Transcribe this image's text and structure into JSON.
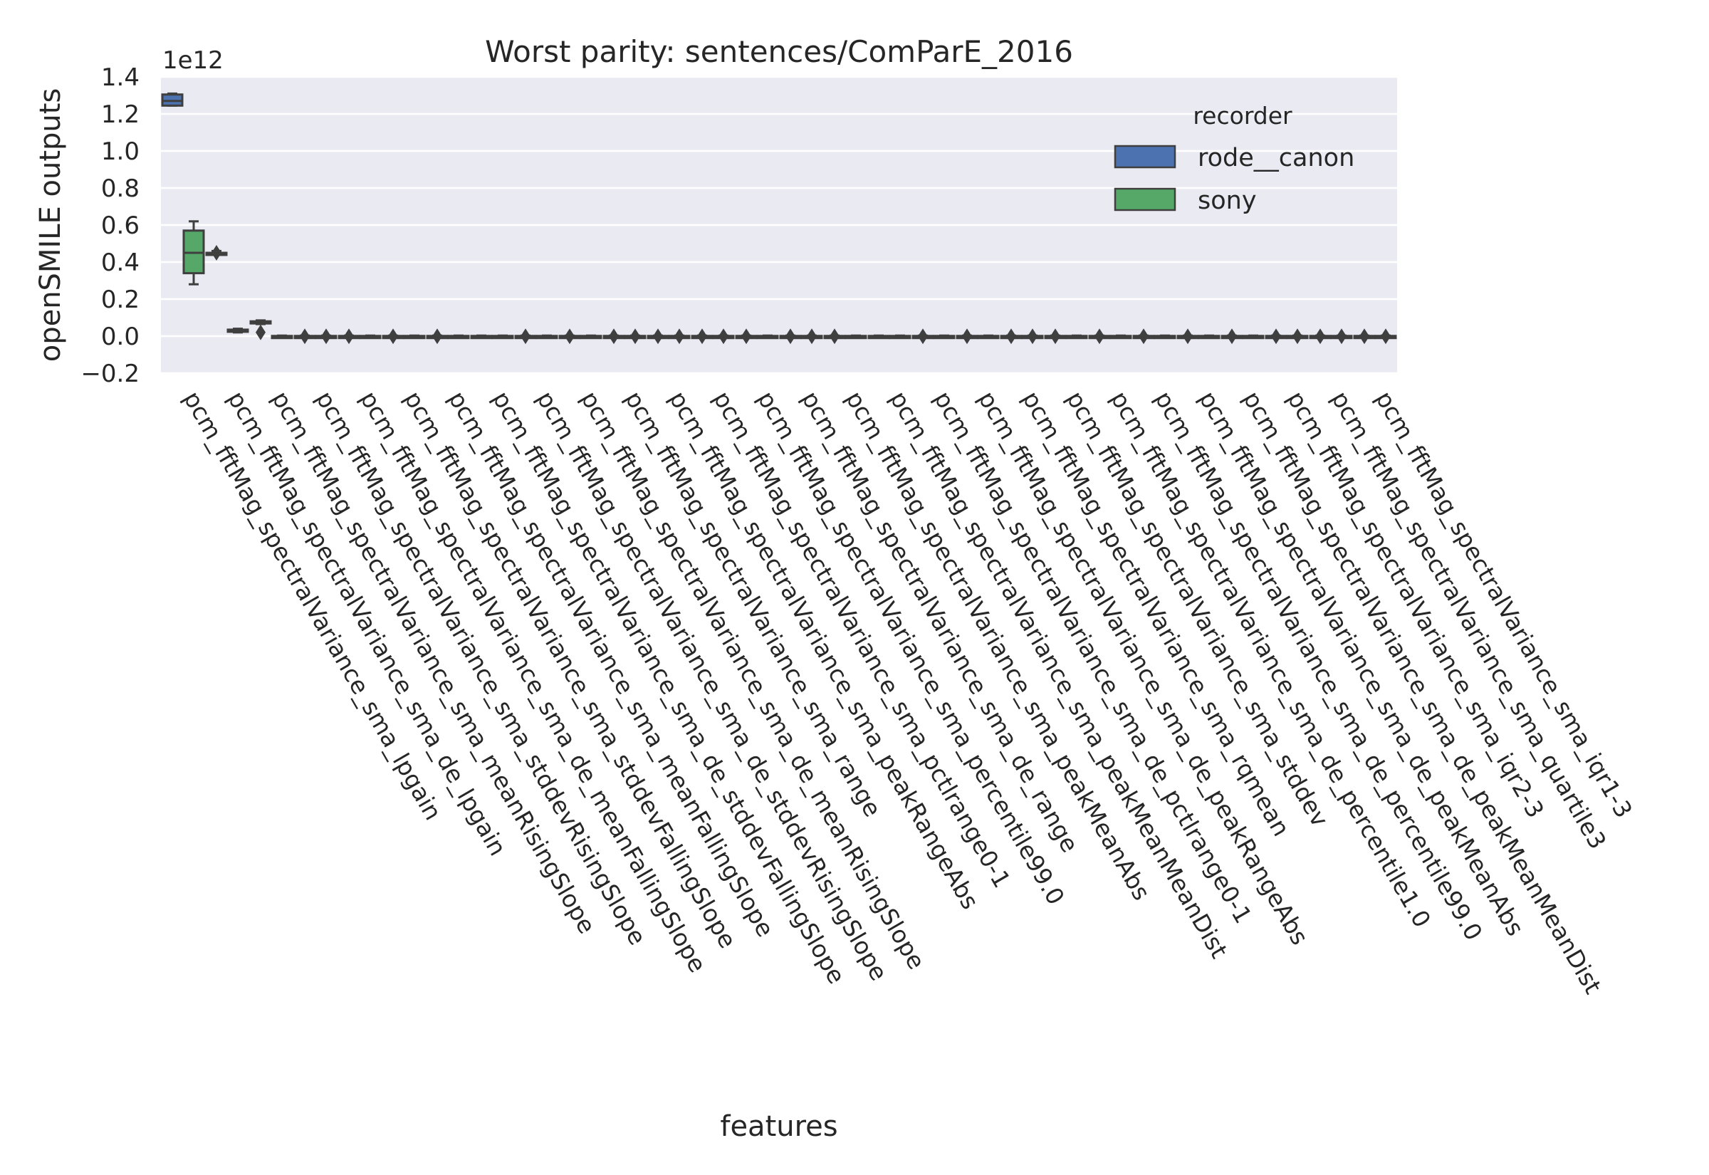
{
  "chart_data": {
    "type": "box",
    "title": "Worst parity: sentences/ComParE_2016",
    "xlabel": "features",
    "ylabel": "openSMILE outputs",
    "y_multiplier": "1e12",
    "ylim": [
      -0.2,
      1.4
    ],
    "yticks": [
      "−0.2",
      "0.0",
      "0.2",
      "0.4",
      "0.6",
      "0.8",
      "1.0",
      "1.2",
      "1.4"
    ],
    "ytick_values": [
      -0.2,
      0.0,
      0.2,
      0.4,
      0.6,
      0.8,
      1.0,
      1.2,
      1.4
    ],
    "grid": true,
    "legend": {
      "title": "recorder",
      "placement": "top-right",
      "entries": [
        {
          "label": "rode__canon",
          "color": "#4c72b0"
        },
        {
          "label": "sony",
          "color": "#55a868"
        }
      ]
    },
    "categories": [
      "pcm_fftMag_spectralVariance_sma_lpgain",
      "pcm_fftMag_spectralVariance_sma_de_lpgain",
      "pcm_fftMag_spectralVariance_sma_meanRisingSlope",
      "pcm_fftMag_spectralVariance_sma_stddevRisingSlope",
      "pcm_fftMag_spectralVariance_sma_de_meanFallingSlope",
      "pcm_fftMag_spectralVariance_sma_stddevFallingSlope",
      "pcm_fftMag_spectralVariance_sma_meanFallingSlope",
      "pcm_fftMag_spectralVariance_sma_de_stddevFallingSlope",
      "pcm_fftMag_spectralVariance_sma_de_stddevRisingSlope",
      "pcm_fftMag_spectralVariance_sma_de_meanRisingSlope",
      "pcm_fftMag_spectralVariance_sma_range",
      "pcm_fftMag_spectralVariance_sma_peakRangeAbs",
      "pcm_fftMag_spectralVariance_sma_pctlrange0-1",
      "pcm_fftMag_spectralVariance_sma_percentile99.0",
      "pcm_fftMag_spectralVariance_sma_de_range",
      "pcm_fftMag_spectralVariance_sma_peakMeanAbs",
      "pcm_fftMag_spectralVariance_sma_peakMeanMeanDist",
      "pcm_fftMag_spectralVariance_sma_de_pctlrange0-1",
      "pcm_fftMag_spectralVariance_sma_de_peakRangeAbs",
      "pcm_fftMag_spectralVariance_sma_rqmean",
      "pcm_fftMag_spectralVariance_sma_stddev",
      "pcm_fftMag_spectralVariance_sma_de_percentile1.0",
      "pcm_fftMag_spectralVariance_sma_de_percentile99.0",
      "pcm_fftMag_spectralVariance_sma_de_peakMeanAbs",
      "pcm_fftMag_spectralVariance_sma_de_peakMeanMeanDist",
      "pcm_fftMag_spectralVariance_sma_iqr2-3",
      "pcm_fftMag_spectralVariance_sma_quartile3",
      "pcm_fftMag_spectralVariance_sma_iqr1-3"
    ],
    "series": [
      {
        "name": "rode__canon",
        "color": "#4c72b0",
        "boxes": [
          {
            "whislo": 1.245,
            "q1": 1.245,
            "med": 1.27,
            "q3": 1.305,
            "whishi": 1.31,
            "fliers": []
          },
          {
            "whislo": 0.44,
            "q1": 0.44,
            "med": 0.45,
            "q3": 0.45,
            "whishi": 0.46,
            "fliers": [
              0.45
            ]
          },
          {
            "whislo": 0.065,
            "q1": 0.07,
            "med": 0.075,
            "q3": 0.08,
            "whishi": 0.085,
            "fliers": [
              0.02
            ]
          },
          {
            "whislo": -0.005,
            "q1": -0.003,
            "med": -0.001,
            "q3": 0.001,
            "whishi": 0.003,
            "fliers": [
              -0.001
            ]
          },
          {
            "whislo": -0.005,
            "q1": -0.003,
            "med": -0.001,
            "q3": 0.001,
            "whishi": 0.003,
            "fliers": [
              -0.001
            ]
          },
          {
            "whislo": -0.005,
            "q1": -0.003,
            "med": -0.001,
            "q3": 0.001,
            "whishi": 0.003,
            "fliers": [
              -0.001
            ]
          },
          {
            "whislo": -0.005,
            "q1": -0.003,
            "med": -0.001,
            "q3": 0.001,
            "whishi": 0.003,
            "fliers": [
              -0.001
            ]
          },
          {
            "whislo": -0.005,
            "q1": -0.003,
            "med": -0.001,
            "q3": 0.001,
            "whishi": 0.003,
            "fliers": []
          },
          {
            "whislo": -0.005,
            "q1": -0.003,
            "med": -0.001,
            "q3": 0.001,
            "whishi": 0.003,
            "fliers": [
              -0.001
            ]
          },
          {
            "whislo": -0.005,
            "q1": -0.003,
            "med": -0.001,
            "q3": 0.001,
            "whishi": 0.003,
            "fliers": [
              -0.001
            ]
          },
          {
            "whislo": -0.005,
            "q1": -0.003,
            "med": -0.001,
            "q3": 0.001,
            "whishi": 0.003,
            "fliers": [
              -0.001
            ]
          },
          {
            "whislo": -0.005,
            "q1": -0.003,
            "med": -0.001,
            "q3": 0.001,
            "whishi": 0.003,
            "fliers": [
              -0.001
            ]
          },
          {
            "whislo": -0.005,
            "q1": -0.003,
            "med": -0.001,
            "q3": 0.001,
            "whishi": 0.003,
            "fliers": [
              -0.001
            ]
          },
          {
            "whislo": -0.005,
            "q1": -0.003,
            "med": -0.001,
            "q3": 0.001,
            "whishi": 0.003,
            "fliers": [
              -0.001
            ]
          },
          {
            "whislo": -0.005,
            "q1": -0.003,
            "med": -0.001,
            "q3": 0.001,
            "whishi": 0.003,
            "fliers": [
              -0.001
            ]
          },
          {
            "whislo": -0.005,
            "q1": -0.003,
            "med": -0.001,
            "q3": 0.001,
            "whishi": 0.003,
            "fliers": [
              -0.001
            ]
          },
          {
            "whislo": -0.005,
            "q1": -0.003,
            "med": -0.001,
            "q3": 0.001,
            "whishi": 0.003,
            "fliers": []
          },
          {
            "whislo": -0.005,
            "q1": -0.003,
            "med": -0.001,
            "q3": 0.001,
            "whishi": 0.003,
            "fliers": [
              -0.001
            ]
          },
          {
            "whislo": -0.005,
            "q1": -0.003,
            "med": -0.001,
            "q3": 0.001,
            "whishi": 0.003,
            "fliers": [
              -0.001
            ]
          },
          {
            "whislo": -0.005,
            "q1": -0.003,
            "med": -0.001,
            "q3": 0.001,
            "whishi": 0.003,
            "fliers": [
              -0.001
            ]
          },
          {
            "whislo": -0.005,
            "q1": -0.003,
            "med": -0.001,
            "q3": 0.001,
            "whishi": 0.003,
            "fliers": [
              -0.001
            ]
          },
          {
            "whislo": -0.005,
            "q1": -0.003,
            "med": -0.001,
            "q3": 0.001,
            "whishi": 0.003,
            "fliers": [
              -0.001
            ]
          },
          {
            "whislo": -0.005,
            "q1": -0.003,
            "med": -0.001,
            "q3": 0.001,
            "whishi": 0.003,
            "fliers": [
              -0.001
            ]
          },
          {
            "whislo": -0.005,
            "q1": -0.003,
            "med": -0.001,
            "q3": 0.001,
            "whishi": 0.003,
            "fliers": [
              -0.001
            ]
          },
          {
            "whislo": -0.005,
            "q1": -0.003,
            "med": -0.001,
            "q3": 0.001,
            "whishi": 0.003,
            "fliers": [
              -0.001
            ]
          },
          {
            "whislo": -0.005,
            "q1": -0.003,
            "med": -0.001,
            "q3": 0.001,
            "whishi": 0.003,
            "fliers": [
              -0.001
            ]
          },
          {
            "whislo": -0.005,
            "q1": -0.003,
            "med": -0.001,
            "q3": 0.001,
            "whishi": 0.003,
            "fliers": [
              -0.001
            ]
          },
          {
            "whislo": -0.005,
            "q1": -0.003,
            "med": -0.001,
            "q3": 0.001,
            "whishi": 0.003,
            "fliers": [
              -0.001
            ]
          }
        ]
      },
      {
        "name": "sony",
        "color": "#55a868",
        "boxes": [
          {
            "whislo": 0.28,
            "q1": 0.34,
            "med": 0.45,
            "q3": 0.57,
            "whishi": 0.62,
            "fliers": []
          },
          {
            "whislo": 0.02,
            "q1": 0.025,
            "med": 0.03,
            "q3": 0.035,
            "whishi": 0.04,
            "fliers": []
          },
          {
            "whislo": -0.005,
            "q1": -0.003,
            "med": -0.001,
            "q3": 0.001,
            "whishi": 0.003,
            "fliers": []
          },
          {
            "whislo": -0.005,
            "q1": -0.003,
            "med": -0.001,
            "q3": 0.001,
            "whishi": 0.003,
            "fliers": [
              -0.001
            ]
          },
          {
            "whislo": -0.005,
            "q1": -0.003,
            "med": -0.001,
            "q3": 0.001,
            "whishi": 0.003,
            "fliers": []
          },
          {
            "whislo": -0.005,
            "q1": -0.003,
            "med": -0.001,
            "q3": 0.001,
            "whishi": 0.003,
            "fliers": []
          },
          {
            "whislo": -0.005,
            "q1": -0.003,
            "med": -0.001,
            "q3": 0.001,
            "whishi": 0.003,
            "fliers": []
          },
          {
            "whislo": -0.005,
            "q1": -0.003,
            "med": -0.001,
            "q3": 0.001,
            "whishi": 0.003,
            "fliers": []
          },
          {
            "whislo": -0.005,
            "q1": -0.003,
            "med": -0.001,
            "q3": 0.001,
            "whishi": 0.003,
            "fliers": []
          },
          {
            "whislo": -0.005,
            "q1": -0.003,
            "med": -0.001,
            "q3": 0.001,
            "whishi": 0.003,
            "fliers": []
          },
          {
            "whislo": -0.005,
            "q1": -0.003,
            "med": -0.001,
            "q3": 0.001,
            "whishi": 0.003,
            "fliers": [
              -0.001
            ]
          },
          {
            "whislo": -0.005,
            "q1": -0.003,
            "med": -0.001,
            "q3": 0.001,
            "whishi": 0.003,
            "fliers": [
              -0.001
            ]
          },
          {
            "whislo": -0.005,
            "q1": -0.003,
            "med": -0.001,
            "q3": 0.001,
            "whishi": 0.003,
            "fliers": [
              -0.001
            ]
          },
          {
            "whislo": -0.005,
            "q1": -0.003,
            "med": -0.001,
            "q3": 0.001,
            "whishi": 0.003,
            "fliers": []
          },
          {
            "whislo": -0.005,
            "q1": -0.003,
            "med": -0.001,
            "q3": 0.001,
            "whishi": 0.003,
            "fliers": [
              -0.001
            ]
          },
          {
            "whislo": -0.005,
            "q1": -0.003,
            "med": -0.001,
            "q3": 0.001,
            "whishi": 0.003,
            "fliers": []
          },
          {
            "whislo": -0.005,
            "q1": -0.003,
            "med": -0.001,
            "q3": 0.001,
            "whishi": 0.003,
            "fliers": []
          },
          {
            "whislo": -0.005,
            "q1": -0.003,
            "med": -0.001,
            "q3": 0.001,
            "whishi": 0.003,
            "fliers": []
          },
          {
            "whislo": -0.005,
            "q1": -0.003,
            "med": -0.001,
            "q3": 0.001,
            "whishi": 0.003,
            "fliers": []
          },
          {
            "whislo": -0.005,
            "q1": -0.003,
            "med": -0.001,
            "q3": 0.001,
            "whishi": 0.003,
            "fliers": [
              -0.001
            ]
          },
          {
            "whislo": -0.005,
            "q1": -0.003,
            "med": -0.001,
            "q3": 0.001,
            "whishi": 0.003,
            "fliers": []
          },
          {
            "whislo": -0.005,
            "q1": -0.003,
            "med": -0.001,
            "q3": 0.001,
            "whishi": 0.003,
            "fliers": []
          },
          {
            "whislo": -0.005,
            "q1": -0.003,
            "med": -0.001,
            "q3": 0.001,
            "whishi": 0.003,
            "fliers": []
          },
          {
            "whislo": -0.005,
            "q1": -0.003,
            "med": -0.001,
            "q3": 0.001,
            "whishi": 0.003,
            "fliers": []
          },
          {
            "whislo": -0.005,
            "q1": -0.003,
            "med": -0.001,
            "q3": 0.001,
            "whishi": 0.003,
            "fliers": []
          },
          {
            "whislo": -0.005,
            "q1": -0.003,
            "med": -0.001,
            "q3": 0.001,
            "whishi": 0.003,
            "fliers": [
              -0.001
            ]
          },
          {
            "whislo": -0.005,
            "q1": -0.003,
            "med": -0.001,
            "q3": 0.001,
            "whishi": 0.003,
            "fliers": [
              -0.001
            ]
          },
          {
            "whislo": -0.005,
            "q1": -0.003,
            "med": -0.001,
            "q3": 0.001,
            "whishi": 0.003,
            "fliers": [
              -0.001
            ]
          }
        ]
      }
    ]
  }
}
